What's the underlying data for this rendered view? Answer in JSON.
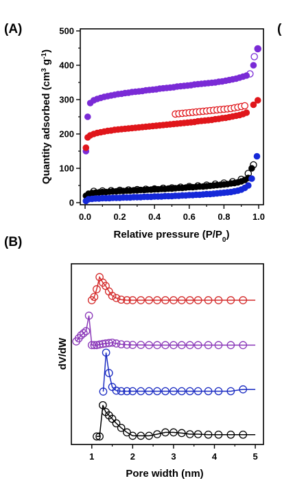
{
  "panel_labels": {
    "a": "(A)",
    "b": "(B)",
    "c_partial": "("
  },
  "colors": {
    "purple": "#7a2bd6",
    "red": "#e0161b",
    "black": "#000000",
    "blue": "#1528d8",
    "purple_b": "#8a37b8",
    "red_b": "#d42a2a",
    "blue_b": "#1a2bc2"
  },
  "chart_data": [
    {
      "panel": "(A)",
      "type": "scatter",
      "title": "",
      "xlabel_main": "Relative pressure (P/P",
      "xlabel_sub": "0",
      "xlabel_end": ")",
      "ylabel_main": "Quantity adsorbed (cm",
      "ylabel_sup1": "3",
      "ylabel_mid": " g",
      "ylabel_sup2": "-1",
      "ylabel_end": ")",
      "xlim": [
        0,
        1.0
      ],
      "ylim": [
        0,
        500
      ],
      "xticks": [
        "0.0",
        "0.2",
        "0.4",
        "0.6",
        "0.8",
        "1.0"
      ],
      "yticks": [
        "0",
        "100",
        "200",
        "300",
        "400",
        "500"
      ],
      "series": [
        {
          "color": "purple",
          "adsorption": {
            "x": [
              0.005,
              0.015,
              0.03,
              0.05,
              0.07,
              0.09,
              0.11,
              0.13,
              0.15,
              0.17,
              0.19,
              0.21,
              0.23,
              0.25,
              0.27,
              0.29,
              0.31,
              0.33,
              0.35,
              0.37,
              0.39,
              0.41,
              0.43,
              0.45,
              0.47,
              0.49,
              0.51,
              0.53,
              0.55,
              0.57,
              0.59,
              0.61,
              0.63,
              0.65,
              0.67,
              0.69,
              0.71,
              0.73,
              0.75,
              0.77,
              0.79,
              0.81,
              0.83,
              0.85,
              0.87,
              0.89,
              0.91,
              0.93,
              0.97,
              0.995
            ],
            "y": [
              150,
              250,
              290,
              298,
              302,
              305,
              308,
              310,
              312,
              314,
              316,
              317,
              319,
              320,
              322,
              323,
              324,
              325,
              327,
              328,
              329,
              330,
              332,
              333,
              334,
              335,
              336,
              338,
              339,
              340,
              341,
              342,
              344,
              345,
              346,
              347,
              348,
              349,
              350,
              352,
              353,
              355,
              357,
              359,
              361,
              364,
              367,
              370,
              400,
              448
            ]
          },
          "desorption": {
            "x": [
              0.95,
              0.975,
              0.995
            ],
            "y": [
              375,
              425,
              448
            ]
          }
        },
        {
          "color": "red",
          "adsorption": {
            "x": [
              0.005,
              0.015,
              0.03,
              0.05,
              0.07,
              0.09,
              0.11,
              0.13,
              0.15,
              0.17,
              0.19,
              0.21,
              0.23,
              0.25,
              0.27,
              0.29,
              0.31,
              0.33,
              0.35,
              0.37,
              0.39,
              0.41,
              0.43,
              0.45,
              0.47,
              0.49,
              0.51,
              0.53,
              0.55,
              0.57,
              0.59,
              0.61,
              0.63,
              0.65,
              0.67,
              0.69,
              0.71,
              0.73,
              0.75,
              0.77,
              0.79,
              0.81,
              0.83,
              0.85,
              0.87,
              0.89,
              0.91,
              0.93,
              0.97,
              0.995
            ],
            "y": [
              160,
              190,
              196,
              200,
              203,
              205,
              207,
              209,
              210,
              212,
              213,
              214,
              215,
              216,
              217,
              218,
              219,
              220,
              221,
              222,
              223,
              224,
              225,
              226,
              227,
              228,
              229,
              230,
              231,
              232,
              233,
              234,
              235,
              237,
              238,
              239,
              240,
              241,
              243,
              244,
              246,
              247,
              249,
              251,
              253,
              255,
              258,
              262,
              285,
              298
            ]
          },
          "desorption": {
            "x": [
              0.52,
              0.54,
              0.56,
              0.58,
              0.6,
              0.62,
              0.64,
              0.66,
              0.68,
              0.7,
              0.72,
              0.74,
              0.76,
              0.78,
              0.8,
              0.82,
              0.84,
              0.86,
              0.88,
              0.9,
              0.92
            ],
            "y": [
              258,
              259,
              260,
              261,
              262,
              263,
              264,
              265,
              266,
              267,
              268,
              269,
              270,
              271,
              272,
              273,
              274,
              276,
              278,
              280,
              282
            ]
          }
        },
        {
          "color": "black",
          "adsorption": {
            "x": [
              0.005,
              0.02,
              0.04,
              0.06,
              0.08,
              0.1,
              0.12,
              0.14,
              0.16,
              0.18,
              0.2,
              0.22,
              0.24,
              0.26,
              0.28,
              0.3,
              0.32,
              0.34,
              0.36,
              0.38,
              0.4,
              0.42,
              0.44,
              0.46,
              0.48,
              0.5,
              0.52,
              0.54,
              0.56,
              0.58,
              0.6,
              0.62,
              0.64,
              0.66,
              0.68,
              0.7,
              0.72,
              0.74,
              0.76,
              0.78,
              0.8,
              0.82,
              0.84,
              0.86,
              0.88,
              0.9,
              0.92,
              0.94,
              0.96
            ],
            "y": [
              20,
              26,
              28,
              29,
              30,
              31,
              31,
              32,
              33,
              33,
              34,
              34,
              35,
              35,
              36,
              36,
              37,
              37,
              38,
              38,
              39,
              39,
              40,
              40,
              41,
              41,
              42,
              43,
              43,
              44,
              45,
              45,
              46,
              47,
              47,
              48,
              49,
              50,
              51,
              52,
              53,
              54,
              56,
              57,
              59,
              62,
              66,
              72,
              100
            ]
          },
          "desorption": {
            "x": [
              0.05,
              0.1,
              0.15,
              0.2,
              0.25,
              0.3,
              0.35,
              0.4,
              0.45,
              0.5,
              0.55,
              0.6,
              0.65,
              0.7,
              0.75,
              0.8,
              0.85,
              0.9,
              0.94,
              0.97
            ],
            "y": [
              33,
              34,
              35,
              36,
              37,
              38,
              39,
              40,
              42,
              43,
              45,
              47,
              49,
              51,
              54,
              57,
              61,
              68,
              85,
              110
            ]
          }
        },
        {
          "color": "blue",
          "adsorption": {
            "x": [
              0.005,
              0.02,
              0.04,
              0.06,
              0.08,
              0.1,
              0.12,
              0.14,
              0.16,
              0.18,
              0.2,
              0.22,
              0.24,
              0.26,
              0.28,
              0.3,
              0.32,
              0.34,
              0.36,
              0.38,
              0.4,
              0.42,
              0.44,
              0.46,
              0.48,
              0.5,
              0.52,
              0.54,
              0.56,
              0.58,
              0.6,
              0.62,
              0.64,
              0.66,
              0.68,
              0.7,
              0.72,
              0.74,
              0.76,
              0.78,
              0.8,
              0.82,
              0.84,
              0.86,
              0.88,
              0.9,
              0.92,
              0.94,
              0.96,
              0.99
            ],
            "y": [
              5,
              10,
              11,
              12,
              12,
              13,
              13,
              13,
              14,
              14,
              14,
              15,
              15,
              15,
              16,
              16,
              16,
              17,
              17,
              17,
              18,
              18,
              18,
              19,
              19,
              19,
              20,
              20,
              21,
              21,
              22,
              22,
              23,
              23,
              24,
              25,
              25,
              26,
              27,
              28,
              29,
              30,
              31,
              33,
              35,
              38,
              43,
              50,
              70,
              135
            ]
          },
          "desorption": {
            "x": [],
            "y": []
          }
        }
      ]
    },
    {
      "panel": "(B)",
      "type": "line",
      "title": "",
      "xlabel": "Pore width (nm)",
      "ylabel": "dV/dW",
      "xlim": [
        0.5,
        5.2
      ],
      "xticks": [
        "1",
        "2",
        "3",
        "4",
        "5"
      ],
      "y_ticks_shown": false,
      "series": [
        {
          "color": "red_b",
          "x": [
            1.0,
            1.06,
            1.12,
            1.19,
            1.27,
            1.34,
            1.42,
            1.5,
            1.6,
            1.72,
            1.86,
            2.0,
            2.2,
            2.4,
            2.6,
            2.8,
            3.0,
            3.2,
            3.4,
            3.6,
            3.85,
            4.1,
            4.4,
            4.7
          ],
          "y": [
            3.2,
            3.5,
            4.2,
            5.3,
            4.8,
            4.5,
            4.0,
            3.6,
            3.4,
            3.25,
            3.2,
            3.2,
            3.2,
            3.2,
            3.2,
            3.2,
            3.2,
            3.2,
            3.2,
            3.2,
            3.2,
            3.2,
            3.2,
            3.2
          ],
          "line_end": 5.0
        },
        {
          "color": "purple_b",
          "x": [
            0.62,
            0.68,
            0.74,
            0.8,
            0.86,
            0.93,
            1.0,
            1.06,
            1.12,
            1.19,
            1.27,
            1.34,
            1.42,
            1.5,
            1.6,
            1.72,
            1.86,
            2.0,
            2.2,
            2.4,
            2.6,
            2.8,
            3.0,
            3.2,
            3.4,
            3.6,
            3.85,
            4.1,
            4.4,
            4.7
          ],
          "y": [
            0.2,
            0.35,
            0.5,
            0.6,
            0.7,
            1.45,
            0.02,
            0.02,
            0.02,
            0.05,
            0.08,
            0.1,
            0.12,
            0.14,
            0.1,
            0.06,
            0.04,
            0.03,
            0.03,
            0.02,
            0.02,
            0.02,
            0.02,
            0.02,
            0.02,
            0.02,
            0.02,
            0.02,
            0.02,
            0.02
          ],
          "line_end": 5.0
        },
        {
          "color": "blue_b",
          "x": [
            1.28,
            1.35,
            1.42,
            1.5,
            1.6,
            1.72,
            1.86,
            2.0,
            2.2,
            2.4,
            2.6,
            2.8,
            3.0,
            3.2,
            3.4,
            3.6,
            3.85,
            4.1,
            4.4,
            4.7
          ],
          "y": [
            0.0,
            2.1,
            1.0,
            0.25,
            0.05,
            0.02,
            0.02,
            0.02,
            0.02,
            0.02,
            0.02,
            0.02,
            0.02,
            0.02,
            0.02,
            0.02,
            0.02,
            0.02,
            0.02,
            0.12
          ],
          "line_end": 5.0
        },
        {
          "color": "black",
          "x": [
            1.12,
            1.19,
            1.27,
            1.34,
            1.42,
            1.5,
            1.6,
            1.72,
            1.86,
            2.0,
            2.2,
            2.4,
            2.6,
            2.8,
            3.0,
            3.2,
            3.4,
            3.6,
            3.85,
            4.1,
            4.4,
            4.7
          ],
          "y": [
            0.02,
            0.02,
            1.4,
            1.1,
            0.95,
            0.8,
            0.6,
            0.4,
            0.2,
            0.05,
            0.05,
            0.05,
            0.12,
            0.2,
            0.2,
            0.17,
            0.12,
            0.12,
            0.1,
            0.1,
            0.1,
            0.1
          ],
          "line_end": 5.0
        }
      ]
    }
  ]
}
